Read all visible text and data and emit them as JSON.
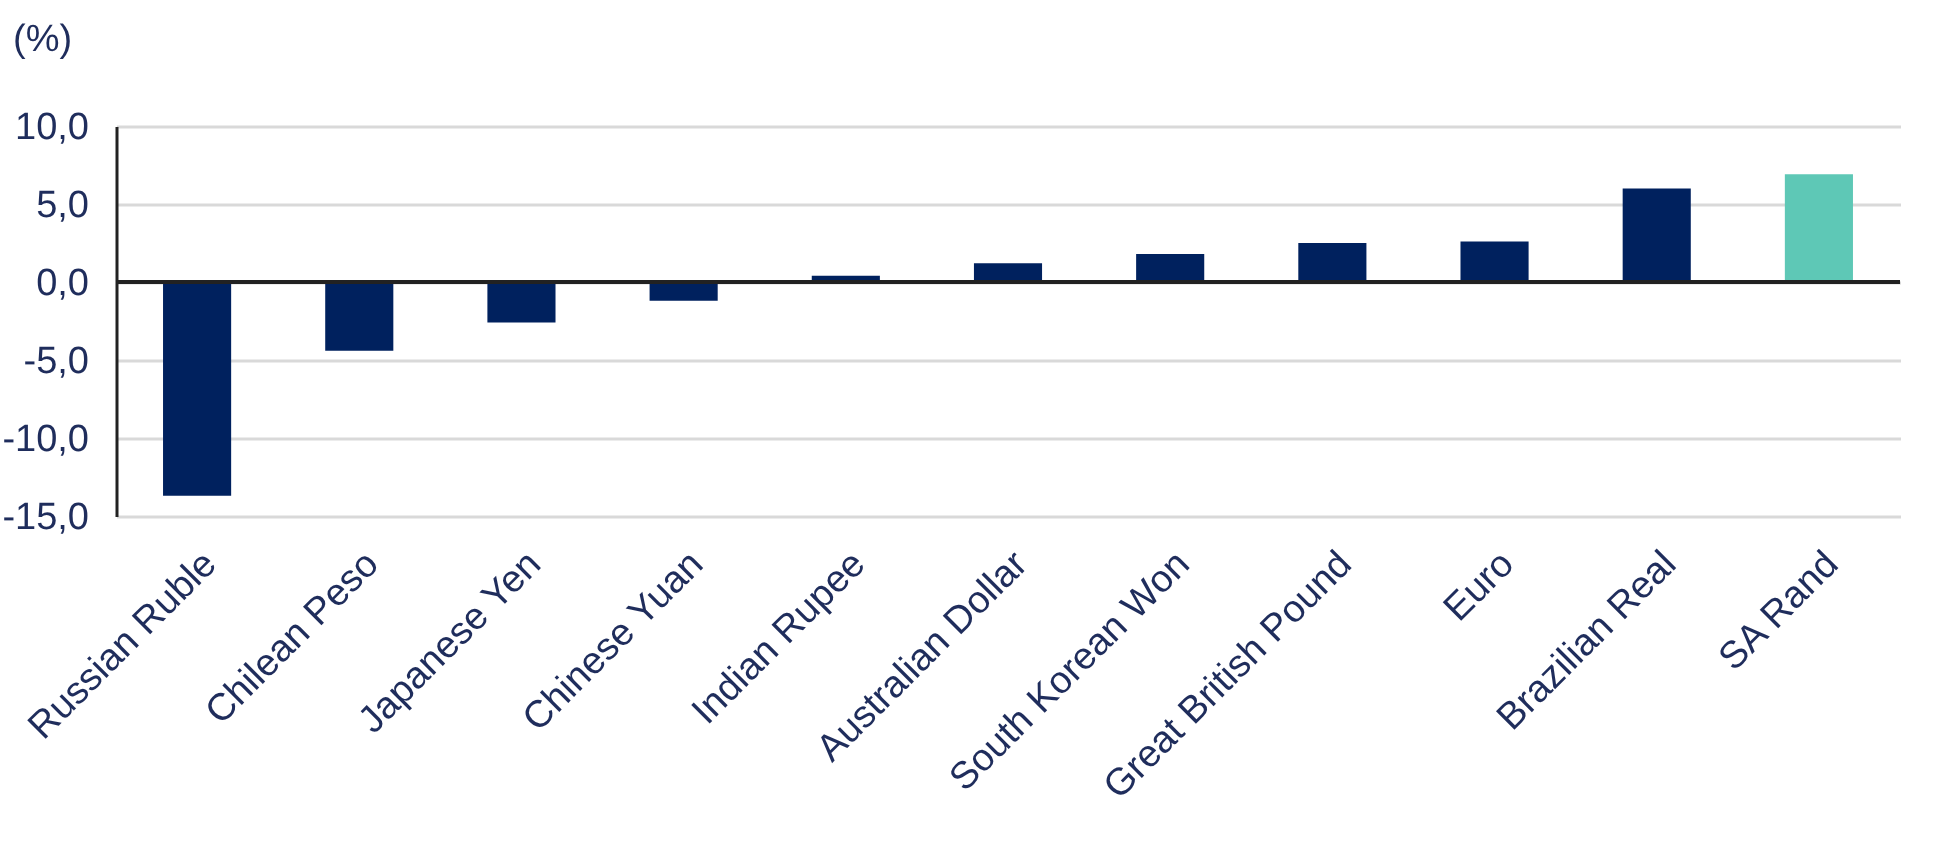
{
  "chart_data": {
    "type": "bar",
    "ylabel": "(%)",
    "categories": [
      "Russian Ruble",
      "Chilean Peso",
      "Japanese Yen",
      "Chinese Yuan",
      "Indian Rupee",
      "Australian Dollar",
      "South Korean Won",
      "Great British Pound",
      "Euro",
      "Brazilian Real",
      "SA Rand"
    ],
    "values": [
      -13.7,
      -4.4,
      -2.6,
      -1.2,
      0.4,
      1.2,
      1.8,
      2.5,
      2.6,
      6.0,
      6.9
    ],
    "colors": [
      "#00215e",
      "#00215e",
      "#00215e",
      "#00215e",
      "#00215e",
      "#00215e",
      "#00215e",
      "#00215e",
      "#00215e",
      "#00215e",
      "#5ec8b6"
    ],
    "ylim": [
      -15,
      10
    ],
    "yticks": [
      {
        "value": -15,
        "label": "-15,0"
      },
      {
        "value": -10,
        "label": "-10,0"
      },
      {
        "value": -5,
        "label": "-5,0"
      },
      {
        "value": 0,
        "label": "0,0"
      },
      {
        "value": 5,
        "label": "5,0"
      },
      {
        "value": 10,
        "label": "10,0"
      }
    ],
    "grid": "y",
    "ref_lines": [
      {
        "axis": "y",
        "value": 0,
        "color": "#222222"
      }
    ]
  }
}
